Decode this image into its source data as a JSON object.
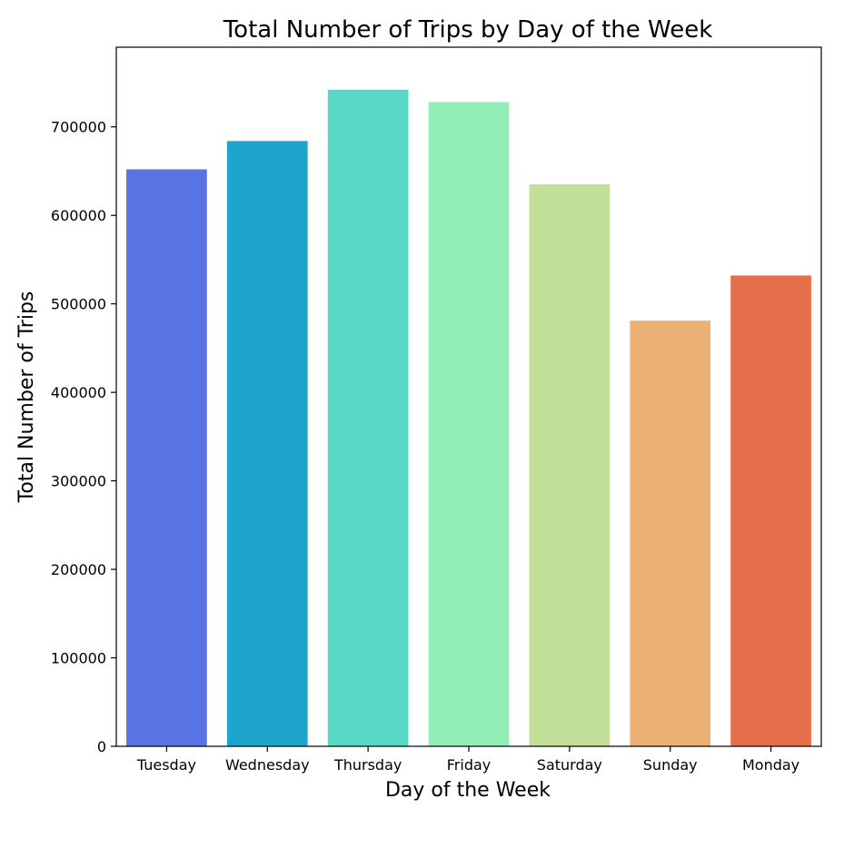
{
  "chart_data": {
    "type": "bar",
    "title": "Total Number of Trips by Day of the Week",
    "xlabel": "Day of the Week",
    "ylabel": "Total Number of Trips",
    "categories": [
      "Tuesday",
      "Wednesday",
      "Thursday",
      "Friday",
      "Saturday",
      "Sunday",
      "Monday"
    ],
    "values": [
      652000,
      684000,
      742000,
      728000,
      635000,
      481000,
      532000
    ],
    "colors": [
      "#5873e2",
      "#1fa4cc",
      "#57d8c4",
      "#91eeb6",
      "#c2df98",
      "#ebb174",
      "#e56f4b"
    ],
    "ylim": [
      0,
      790000
    ],
    "yticks": [
      0,
      100000,
      200000,
      300000,
      400000,
      500000,
      600000,
      700000
    ],
    "ytick_labels": [
      "0",
      "100000",
      "200000",
      "300000",
      "400000",
      "500000",
      "600000",
      "700000"
    ],
    "grid": false,
    "legend": false
  }
}
